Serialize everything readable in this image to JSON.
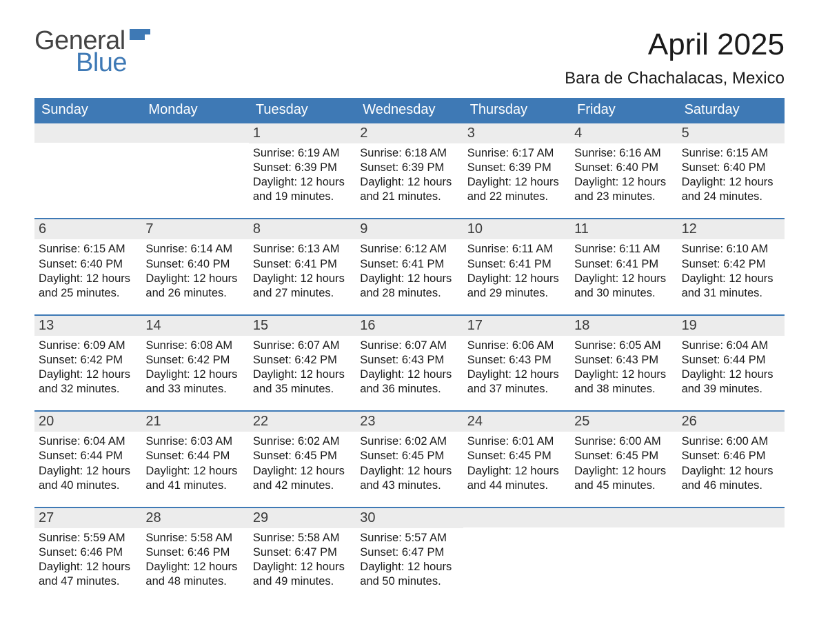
{
  "logo": {
    "word1": "General",
    "word2": "Blue",
    "accent_color": "#3e79b5",
    "text_color": "#444444"
  },
  "title": "April 2025",
  "subtitle": "Bara de Chachalacas, Mexico",
  "colors": {
    "header_bg": "#3e79b5",
    "header_text": "#ffffff",
    "band_bg": "#ececec",
    "rule": "#3e79b5",
    "body_text": "#1a1a1a",
    "page_bg": "#ffffff"
  },
  "typography": {
    "title_fontsize": 44,
    "subtitle_fontsize": 24,
    "weekday_fontsize": 20,
    "daynum_fontsize": 20,
    "body_fontsize": 16.5
  },
  "layout": {
    "columns": 7,
    "rows": 5,
    "aspect_w": 1188,
    "aspect_h": 918
  },
  "weekdays": [
    "Sunday",
    "Monday",
    "Tuesday",
    "Wednesday",
    "Thursday",
    "Friday",
    "Saturday"
  ],
  "weeks": [
    [
      {
        "day": "",
        "sunrise": "",
        "sunset": "",
        "daylight": ""
      },
      {
        "day": "",
        "sunrise": "",
        "sunset": "",
        "daylight": ""
      },
      {
        "day": "1",
        "sunrise": "Sunrise: 6:19 AM",
        "sunset": "Sunset: 6:39 PM",
        "daylight": "Daylight: 12 hours and 19 minutes."
      },
      {
        "day": "2",
        "sunrise": "Sunrise: 6:18 AM",
        "sunset": "Sunset: 6:39 PM",
        "daylight": "Daylight: 12 hours and 21 minutes."
      },
      {
        "day": "3",
        "sunrise": "Sunrise: 6:17 AM",
        "sunset": "Sunset: 6:39 PM",
        "daylight": "Daylight: 12 hours and 22 minutes."
      },
      {
        "day": "4",
        "sunrise": "Sunrise: 6:16 AM",
        "sunset": "Sunset: 6:40 PM",
        "daylight": "Daylight: 12 hours and 23 minutes."
      },
      {
        "day": "5",
        "sunrise": "Sunrise: 6:15 AM",
        "sunset": "Sunset: 6:40 PM",
        "daylight": "Daylight: 12 hours and 24 minutes."
      }
    ],
    [
      {
        "day": "6",
        "sunrise": "Sunrise: 6:15 AM",
        "sunset": "Sunset: 6:40 PM",
        "daylight": "Daylight: 12 hours and 25 minutes."
      },
      {
        "day": "7",
        "sunrise": "Sunrise: 6:14 AM",
        "sunset": "Sunset: 6:40 PM",
        "daylight": "Daylight: 12 hours and 26 minutes."
      },
      {
        "day": "8",
        "sunrise": "Sunrise: 6:13 AM",
        "sunset": "Sunset: 6:41 PM",
        "daylight": "Daylight: 12 hours and 27 minutes."
      },
      {
        "day": "9",
        "sunrise": "Sunrise: 6:12 AM",
        "sunset": "Sunset: 6:41 PM",
        "daylight": "Daylight: 12 hours and 28 minutes."
      },
      {
        "day": "10",
        "sunrise": "Sunrise: 6:11 AM",
        "sunset": "Sunset: 6:41 PM",
        "daylight": "Daylight: 12 hours and 29 minutes."
      },
      {
        "day": "11",
        "sunrise": "Sunrise: 6:11 AM",
        "sunset": "Sunset: 6:41 PM",
        "daylight": "Daylight: 12 hours and 30 minutes."
      },
      {
        "day": "12",
        "sunrise": "Sunrise: 6:10 AM",
        "sunset": "Sunset: 6:42 PM",
        "daylight": "Daylight: 12 hours and 31 minutes."
      }
    ],
    [
      {
        "day": "13",
        "sunrise": "Sunrise: 6:09 AM",
        "sunset": "Sunset: 6:42 PM",
        "daylight": "Daylight: 12 hours and 32 minutes."
      },
      {
        "day": "14",
        "sunrise": "Sunrise: 6:08 AM",
        "sunset": "Sunset: 6:42 PM",
        "daylight": "Daylight: 12 hours and 33 minutes."
      },
      {
        "day": "15",
        "sunrise": "Sunrise: 6:07 AM",
        "sunset": "Sunset: 6:42 PM",
        "daylight": "Daylight: 12 hours and 35 minutes."
      },
      {
        "day": "16",
        "sunrise": "Sunrise: 6:07 AM",
        "sunset": "Sunset: 6:43 PM",
        "daylight": "Daylight: 12 hours and 36 minutes."
      },
      {
        "day": "17",
        "sunrise": "Sunrise: 6:06 AM",
        "sunset": "Sunset: 6:43 PM",
        "daylight": "Daylight: 12 hours and 37 minutes."
      },
      {
        "day": "18",
        "sunrise": "Sunrise: 6:05 AM",
        "sunset": "Sunset: 6:43 PM",
        "daylight": "Daylight: 12 hours and 38 minutes."
      },
      {
        "day": "19",
        "sunrise": "Sunrise: 6:04 AM",
        "sunset": "Sunset: 6:44 PM",
        "daylight": "Daylight: 12 hours and 39 minutes."
      }
    ],
    [
      {
        "day": "20",
        "sunrise": "Sunrise: 6:04 AM",
        "sunset": "Sunset: 6:44 PM",
        "daylight": "Daylight: 12 hours and 40 minutes."
      },
      {
        "day": "21",
        "sunrise": "Sunrise: 6:03 AM",
        "sunset": "Sunset: 6:44 PM",
        "daylight": "Daylight: 12 hours and 41 minutes."
      },
      {
        "day": "22",
        "sunrise": "Sunrise: 6:02 AM",
        "sunset": "Sunset: 6:45 PM",
        "daylight": "Daylight: 12 hours and 42 minutes."
      },
      {
        "day": "23",
        "sunrise": "Sunrise: 6:02 AM",
        "sunset": "Sunset: 6:45 PM",
        "daylight": "Daylight: 12 hours and 43 minutes."
      },
      {
        "day": "24",
        "sunrise": "Sunrise: 6:01 AM",
        "sunset": "Sunset: 6:45 PM",
        "daylight": "Daylight: 12 hours and 44 minutes."
      },
      {
        "day": "25",
        "sunrise": "Sunrise: 6:00 AM",
        "sunset": "Sunset: 6:45 PM",
        "daylight": "Daylight: 12 hours and 45 minutes."
      },
      {
        "day": "26",
        "sunrise": "Sunrise: 6:00 AM",
        "sunset": "Sunset: 6:46 PM",
        "daylight": "Daylight: 12 hours and 46 minutes."
      }
    ],
    [
      {
        "day": "27",
        "sunrise": "Sunrise: 5:59 AM",
        "sunset": "Sunset: 6:46 PM",
        "daylight": "Daylight: 12 hours and 47 minutes."
      },
      {
        "day": "28",
        "sunrise": "Sunrise: 5:58 AM",
        "sunset": "Sunset: 6:46 PM",
        "daylight": "Daylight: 12 hours and 48 minutes."
      },
      {
        "day": "29",
        "sunrise": "Sunrise: 5:58 AM",
        "sunset": "Sunset: 6:47 PM",
        "daylight": "Daylight: 12 hours and 49 minutes."
      },
      {
        "day": "30",
        "sunrise": "Sunrise: 5:57 AM",
        "sunset": "Sunset: 6:47 PM",
        "daylight": "Daylight: 12 hours and 50 minutes."
      },
      {
        "day": "",
        "sunrise": "",
        "sunset": "",
        "daylight": ""
      },
      {
        "day": "",
        "sunrise": "",
        "sunset": "",
        "daylight": ""
      },
      {
        "day": "",
        "sunrise": "",
        "sunset": "",
        "daylight": ""
      }
    ]
  ]
}
